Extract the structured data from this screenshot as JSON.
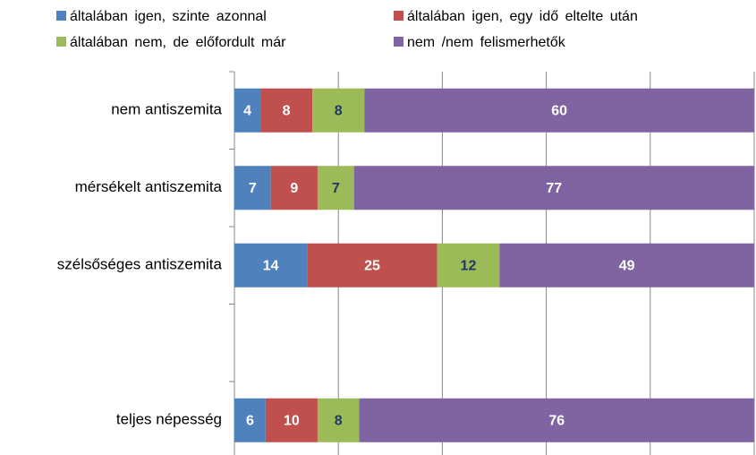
{
  "chart_data": {
    "type": "bar",
    "orientation": "horizontal",
    "stacked": "percent",
    "categories": [
      "nem antiszemita",
      "mérsékelt antiszemita",
      "szélsőséges antiszemita",
      null,
      "teljes népesség"
    ],
    "series": [
      {
        "name": "általában igen, szinte azonnal",
        "color": "#4f81bd",
        "label_color": "#ffffff",
        "values": [
          4,
          7,
          14,
          null,
          6
        ]
      },
      {
        "name": "általában igen, egy idő eltelte után",
        "color": "#c0504d",
        "label_color": "#ffffff",
        "values": [
          8,
          9,
          25,
          null,
          10
        ]
      },
      {
        "name": "általában nem, de előfordult már",
        "color": "#9bbb59",
        "label_color": "#1f3864",
        "values": [
          8,
          7,
          12,
          null,
          8
        ]
      },
      {
        "name": "nem /nem felismerhetők",
        "color": "#8064a2",
        "label_color": "#ffffff",
        "values": [
          60,
          77,
          49,
          null,
          76
        ]
      }
    ],
    "xlim": [
      0,
      100
    ],
    "xticks": [
      0,
      20,
      40,
      60,
      80,
      100
    ],
    "grid": true,
    "legend": "top"
  }
}
